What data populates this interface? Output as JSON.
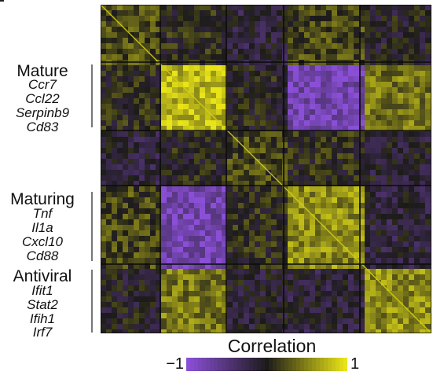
{
  "chart_data": {
    "type": "heatmap",
    "title": "",
    "xlabel": "",
    "ylabel": "",
    "block_count": 5,
    "block_correlation_matrix": [
      [
        0.25,
        0.05,
        -0.15,
        0.2,
        -0.05
      ],
      [
        0.05,
        0.8,
        0.0,
        -0.8,
        0.45
      ],
      [
        -0.15,
        0.0,
        0.2,
        0.05,
        -0.1
      ],
      [
        0.2,
        -0.8,
        0.05,
        0.55,
        -0.15
      ],
      [
        -0.05,
        0.45,
        -0.1,
        -0.15,
        0.55
      ]
    ],
    "value_range": [
      -1,
      1
    ],
    "grid": false,
    "legend_position": "bottom"
  },
  "modules": [
    {
      "title": "Mature",
      "genes": [
        "Ccr7",
        "Ccl22",
        "Serpinb9",
        "Cd83"
      ]
    },
    {
      "title": "Maturing",
      "genes": [
        "Tnf",
        "Il1a",
        "Cxcl10",
        "Cd88"
      ]
    },
    {
      "title": "Antiviral",
      "genes": [
        "Ifit1",
        "Stat2",
        "Ifih1",
        "Irf7"
      ]
    }
  ],
  "legend": {
    "title": "Correlation",
    "min_label": "−1",
    "max_label": "1",
    "colors": {
      "negative": "#8a4fd6",
      "zero": "#1c1b1a",
      "positive": "#e8e418"
    }
  }
}
